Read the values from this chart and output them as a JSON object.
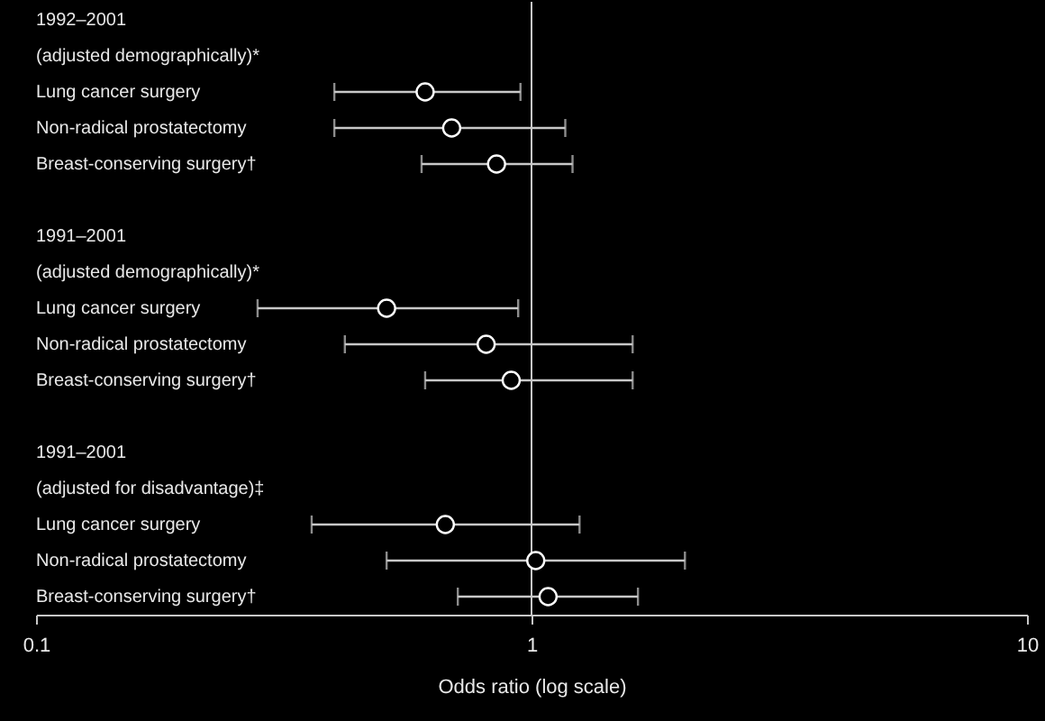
{
  "chart_data": {
    "type": "scatter",
    "orientation": "horizontal",
    "log": "x",
    "xlabel": "Odds ratio (log scale)",
    "categories": [
      "1992–2001",
      "(adjusted demographically)*",
      "Lung cancer surgery",
      "Non-radical prostatectomy",
      "Breast-conserving surgery†",
      null,
      "1991–2001",
      "(adjusted demographically)*",
      "Lung cancer surgery",
      "Non-radical prostatectomy",
      "Breast-conserving surgery†",
      null,
      "1991–2001",
      "(adjusted for disadvantage)‡",
      "Lung cancer surgery",
      "Non-radical prostatectomy",
      "Breast-conserving surgery†"
    ],
    "values": [
      null,
      null,
      0.61,
      0.69,
      0.85,
      null,
      null,
      null,
      0.51,
      0.81,
      0.91,
      null,
      null,
      null,
      0.67,
      1.02,
      1.08
    ],
    "errors": [
      null,
      null,
      [
        0.4,
        0.95
      ],
      [
        0.4,
        1.17
      ],
      [
        0.6,
        1.21
      ],
      null,
      null,
      null,
      [
        0.28,
        0.94
      ],
      [
        0.42,
        1.6
      ],
      [
        0.61,
        1.6
      ],
      null,
      null,
      null,
      [
        0.36,
        1.25
      ],
      [
        0.51,
        2.04
      ],
      [
        0.71,
        1.64
      ]
    ],
    "color": "#ffffff",
    "marker": "circle",
    "xlim": [
      0.1,
      10
    ],
    "xticks": [
      0.1,
      1,
      10
    ],
    "ref_lines": [
      {
        "axis": "x",
        "value": 1,
        "color": "#c8c8c8"
      }
    ]
  }
}
